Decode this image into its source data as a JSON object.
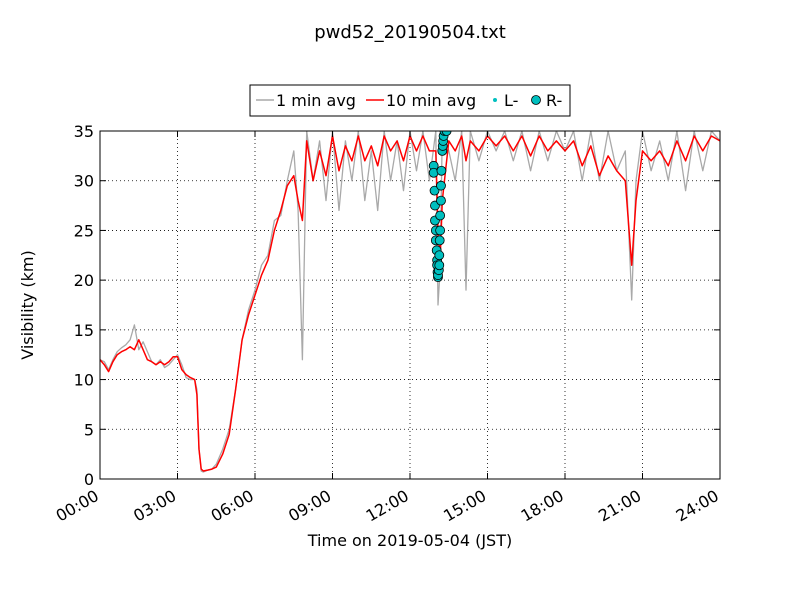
{
  "chart_data": {
    "type": "line",
    "title": "pwd52_20190504.txt",
    "xlabel": "Time on 2019-05-04 (JST)",
    "ylabel": "Visibility (km)",
    "xlim": [
      "00:00",
      "24:00"
    ],
    "ylim": [
      0,
      35
    ],
    "x_ticks": [
      "00:00",
      "03:00",
      "06:00",
      "09:00",
      "12:00",
      "15:00",
      "18:00",
      "21:00",
      "24:00"
    ],
    "y_ticks": [
      "0",
      "5",
      "10",
      "15",
      "20",
      "25",
      "30",
      "35"
    ],
    "grid": true,
    "legend_location": "top-center, above plot",
    "series": [
      {
        "name": "1 min avg",
        "color": "#a9a9a9",
        "style": "line",
        "values": [
          [
            "00:00",
            12.0
          ],
          [
            "00:10",
            11.8
          ],
          [
            "00:20",
            11.0
          ],
          [
            "00:30",
            12.0
          ],
          [
            "00:40",
            12.8
          ],
          [
            "00:50",
            13.2
          ],
          [
            "01:00",
            13.5
          ],
          [
            "01:10",
            14.0
          ],
          [
            "01:20",
            15.5
          ],
          [
            "01:30",
            13.0
          ],
          [
            "01:40",
            13.8
          ],
          [
            "01:50",
            12.8
          ],
          [
            "02:00",
            11.8
          ],
          [
            "02:10",
            11.5
          ],
          [
            "02:20",
            12.0
          ],
          [
            "02:30",
            11.2
          ],
          [
            "02:40",
            11.5
          ],
          [
            "02:50",
            12.0
          ],
          [
            "03:00",
            12.5
          ],
          [
            "03:10",
            11.5
          ],
          [
            "03:20",
            10.2
          ],
          [
            "03:30",
            10.0
          ],
          [
            "03:40",
            10.0
          ],
          [
            "03:45",
            9.0
          ],
          [
            "03:50",
            3.0
          ],
          [
            "03:55",
            0.8
          ],
          [
            "04:00",
            0.7
          ],
          [
            "04:10",
            0.9
          ],
          [
            "04:20",
            1.0
          ],
          [
            "04:30",
            1.5
          ],
          [
            "04:45",
            3.0
          ],
          [
            "05:00",
            5.0
          ],
          [
            "05:15",
            9.0
          ],
          [
            "05:30",
            14.0
          ],
          [
            "05:45",
            17.0
          ],
          [
            "06:00",
            19.0
          ],
          [
            "06:15",
            21.5
          ],
          [
            "06:30",
            22.5
          ],
          [
            "06:45",
            26.0
          ],
          [
            "07:00",
            26.5
          ],
          [
            "07:15",
            30.0
          ],
          [
            "07:30",
            33.0
          ],
          [
            "07:40",
            27.0
          ],
          [
            "07:50",
            12.0
          ],
          [
            "08:00",
            35.0
          ],
          [
            "08:15",
            30.0
          ],
          [
            "08:30",
            34.0
          ],
          [
            "08:45",
            28.0
          ],
          [
            "09:00",
            35.0
          ],
          [
            "09:15",
            27.0
          ],
          [
            "09:30",
            34.0
          ],
          [
            "09:45",
            30.0
          ],
          [
            "10:00",
            35.0
          ],
          [
            "10:15",
            28.0
          ],
          [
            "10:30",
            33.0
          ],
          [
            "10:45",
            27.0
          ],
          [
            "11:00",
            35.0
          ],
          [
            "11:15",
            30.0
          ],
          [
            "11:30",
            34.0
          ],
          [
            "11:45",
            29.0
          ],
          [
            "12:00",
            35.0
          ],
          [
            "12:15",
            31.0
          ],
          [
            "12:30",
            35.0
          ],
          [
            "12:45",
            30.0
          ],
          [
            "13:00",
            35.0
          ],
          [
            "13:05",
            17.5
          ],
          [
            "13:10",
            21.0
          ],
          [
            "13:15",
            35.0
          ],
          [
            "13:30",
            33.0
          ],
          [
            "13:45",
            30.0
          ],
          [
            "14:00",
            35.0
          ],
          [
            "14:10",
            19.0
          ],
          [
            "14:20",
            35.0
          ],
          [
            "14:40",
            32.0
          ],
          [
            "15:00",
            35.0
          ],
          [
            "15:20",
            33.0
          ],
          [
            "15:40",
            35.0
          ],
          [
            "16:00",
            32.0
          ],
          [
            "16:20",
            35.0
          ],
          [
            "16:40",
            31.0
          ],
          [
            "17:00",
            35.0
          ],
          [
            "17:20",
            32.0
          ],
          [
            "17:40",
            35.0
          ],
          [
            "18:00",
            33.0
          ],
          [
            "18:20",
            35.0
          ],
          [
            "18:40",
            30.0
          ],
          [
            "19:00",
            35.0
          ],
          [
            "19:20",
            30.0
          ],
          [
            "19:40",
            35.0
          ],
          [
            "20:00",
            31.0
          ],
          [
            "20:20",
            33.0
          ],
          [
            "20:35",
            18.0
          ],
          [
            "20:45",
            30.0
          ],
          [
            "21:00",
            35.0
          ],
          [
            "21:20",
            31.0
          ],
          [
            "21:40",
            34.0
          ],
          [
            "22:00",
            30.0
          ],
          [
            "22:20",
            35.0
          ],
          [
            "22:40",
            29.0
          ],
          [
            "23:00",
            35.0
          ],
          [
            "23:20",
            31.0
          ],
          [
            "23:40",
            35.0
          ],
          [
            "24:00",
            34.0
          ]
        ]
      },
      {
        "name": "10 min avg",
        "color": "#ff0000",
        "style": "line",
        "values": [
          [
            "00:00",
            12.0
          ],
          [
            "00:10",
            11.5
          ],
          [
            "00:20",
            10.8
          ],
          [
            "00:30",
            11.8
          ],
          [
            "00:40",
            12.5
          ],
          [
            "00:50",
            12.8
          ],
          [
            "01:00",
            13.0
          ],
          [
            "01:10",
            13.3
          ],
          [
            "01:20",
            13.0
          ],
          [
            "01:30",
            14.0
          ],
          [
            "01:40",
            13.0
          ],
          [
            "01:50",
            12.0
          ],
          [
            "02:00",
            11.8
          ],
          [
            "02:10",
            11.5
          ],
          [
            "02:20",
            11.8
          ],
          [
            "02:30",
            11.5
          ],
          [
            "02:40",
            11.8
          ],
          [
            "02:50",
            12.3
          ],
          [
            "03:00",
            12.3
          ],
          [
            "03:10",
            11.0
          ],
          [
            "03:20",
            10.5
          ],
          [
            "03:30",
            10.2
          ],
          [
            "03:40",
            10.0
          ],
          [
            "03:45",
            8.5
          ],
          [
            "03:50",
            3.0
          ],
          [
            "03:55",
            1.0
          ],
          [
            "04:00",
            0.8
          ],
          [
            "04:10",
            0.9
          ],
          [
            "04:20",
            1.0
          ],
          [
            "04:30",
            1.2
          ],
          [
            "04:45",
            2.5
          ],
          [
            "05:00",
            4.5
          ],
          [
            "05:15",
            9.0
          ],
          [
            "05:30",
            14.0
          ],
          [
            "05:45",
            16.5
          ],
          [
            "06:00",
            18.5
          ],
          [
            "06:15",
            20.5
          ],
          [
            "06:30",
            22.0
          ],
          [
            "06:45",
            25.0
          ],
          [
            "07:00",
            27.0
          ],
          [
            "07:15",
            29.5
          ],
          [
            "07:30",
            30.5
          ],
          [
            "07:40",
            28.0
          ],
          [
            "07:50",
            26.0
          ],
          [
            "08:00",
            34.0
          ],
          [
            "08:15",
            30.0
          ],
          [
            "08:30",
            33.0
          ],
          [
            "08:45",
            30.5
          ],
          [
            "09:00",
            34.5
          ],
          [
            "09:15",
            31.0
          ],
          [
            "09:30",
            33.5
          ],
          [
            "09:45",
            32.0
          ],
          [
            "10:00",
            34.5
          ],
          [
            "10:15",
            32.0
          ],
          [
            "10:30",
            33.5
          ],
          [
            "10:45",
            31.5
          ],
          [
            "11:00",
            34.5
          ],
          [
            "11:15",
            33.0
          ],
          [
            "11:30",
            34.0
          ],
          [
            "11:45",
            32.0
          ],
          [
            "12:00",
            34.5
          ],
          [
            "12:15",
            33.0
          ],
          [
            "12:30",
            34.5
          ],
          [
            "12:45",
            33.0
          ],
          [
            "13:00",
            33.0
          ],
          [
            "13:05",
            25.0
          ],
          [
            "13:10",
            22.0
          ],
          [
            "13:15",
            28.0
          ],
          [
            "13:30",
            34.0
          ],
          [
            "13:45",
            33.0
          ],
          [
            "14:00",
            34.5
          ],
          [
            "14:10",
            32.0
          ],
          [
            "14:20",
            34.0
          ],
          [
            "14:40",
            33.0
          ],
          [
            "15:00",
            34.5
          ],
          [
            "15:20",
            33.5
          ],
          [
            "15:40",
            34.5
          ],
          [
            "16:00",
            33.0
          ],
          [
            "16:20",
            34.5
          ],
          [
            "16:40",
            32.5
          ],
          [
            "17:00",
            34.5
          ],
          [
            "17:20",
            33.0
          ],
          [
            "17:40",
            34.0
          ],
          [
            "18:00",
            33.0
          ],
          [
            "18:20",
            34.0
          ],
          [
            "18:40",
            31.5
          ],
          [
            "19:00",
            33.5
          ],
          [
            "19:20",
            30.5
          ],
          [
            "19:40",
            32.5
          ],
          [
            "20:00",
            31.0
          ],
          [
            "20:20",
            30.0
          ],
          [
            "20:35",
            21.5
          ],
          [
            "20:45",
            28.0
          ],
          [
            "21:00",
            33.0
          ],
          [
            "21:20",
            32.0
          ],
          [
            "21:40",
            33.0
          ],
          [
            "22:00",
            31.5
          ],
          [
            "22:20",
            34.0
          ],
          [
            "22:40",
            32.0
          ],
          [
            "23:00",
            34.5
          ],
          [
            "23:20",
            33.0
          ],
          [
            "23:40",
            34.5
          ],
          [
            "24:00",
            34.0
          ]
        ]
      },
      {
        "name": "L-",
        "color": "#00bfbf",
        "style": "marker-small",
        "values": []
      },
      {
        "name": "R-",
        "color": "#00bfbf",
        "style": "marker-circle",
        "values": [
          [
            "12:55",
            31.5
          ],
          [
            "12:55",
            30.8
          ],
          [
            "12:57",
            29.0
          ],
          [
            "12:58",
            27.5
          ],
          [
            "12:58",
            26.0
          ],
          [
            "13:00",
            25.0
          ],
          [
            "13:00",
            24.0
          ],
          [
            "13:02",
            23.0
          ],
          [
            "13:03",
            22.0
          ],
          [
            "13:03",
            21.5
          ],
          [
            "13:04",
            20.8
          ],
          [
            "13:05",
            20.3
          ],
          [
            "13:05",
            20.5
          ],
          [
            "13:07",
            21.0
          ],
          [
            "13:08",
            21.5
          ],
          [
            "13:08",
            22.5
          ],
          [
            "13:09",
            24.0
          ],
          [
            "13:10",
            25.0
          ],
          [
            "13:10",
            26.5
          ],
          [
            "13:12",
            28.0
          ],
          [
            "13:12",
            29.5
          ],
          [
            "13:13",
            31.0
          ],
          [
            "13:15",
            33.0
          ],
          [
            "13:16",
            33.5
          ],
          [
            "13:17",
            34.0
          ],
          [
            "13:18",
            34.5
          ],
          [
            "13:20",
            35.0
          ],
          [
            "13:25",
            35.0
          ]
        ]
      }
    ]
  }
}
